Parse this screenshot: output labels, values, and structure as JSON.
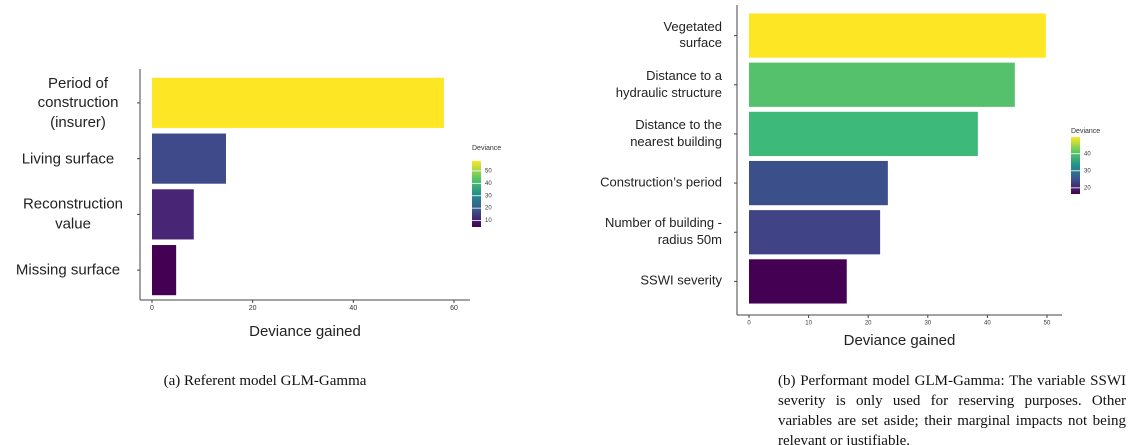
{
  "chart_data": [
    {
      "type": "bar",
      "orientation": "horizontal",
      "categories": [
        "Period of construction (insurer)",
        "Living surface",
        "Reconstruction value",
        "Missing surface"
      ],
      "values": [
        58,
        14.7,
        8.3,
        4.8
      ],
      "colors": [
        "#fde725",
        "#3e4a89",
        "#482575",
        "#440154"
      ],
      "xlim": [
        0,
        60
      ],
      "xticks": [
        0,
        20,
        40,
        60
      ],
      "xlabel": "Deviance gained",
      "colorbar": {
        "title": "Deviance",
        "lim": [
          4.8,
          58
        ],
        "ticks": [
          10,
          20,
          30,
          40,
          50
        ],
        "colors": [
          "#440154",
          "#3b528b",
          "#21918c",
          "#5ec962",
          "#fde725"
        ]
      },
      "caption": "(a) Referent model GLM-Gamma"
    },
    {
      "type": "bar",
      "orientation": "horizontal",
      "categories": [
        "Vegetated surface",
        "Distance to a hydraulic structure",
        "Distance to the nearest building",
        "Construction’s period",
        "Number of building - radius 50m",
        "SSWI severity"
      ],
      "values": [
        49.8,
        44.6,
        38.4,
        23.3,
        22,
        16.4
      ],
      "colors": [
        "#fde725",
        "#56c16c",
        "#3dba79",
        "#3b4f8a",
        "#414387",
        "#440154"
      ],
      "xlim": [
        0,
        52
      ],
      "xticks": [
        0,
        10,
        20,
        30,
        40,
        50
      ],
      "xlabel": "Deviance gained",
      "colorbar": {
        "title": "Deviance",
        "lim": [
          16.4,
          49.8
        ],
        "ticks": [
          20,
          30,
          40
        ],
        "colors": [
          "#440154",
          "#3b528b",
          "#21918c",
          "#5ec962",
          "#fde725"
        ]
      },
      "caption": "(b) Performant model GLM-Gamma: The variable SSWI severity is only used for reserving purposes. Other variables are set aside; their marginal impacts not being relevant or justifiable."
    }
  ]
}
